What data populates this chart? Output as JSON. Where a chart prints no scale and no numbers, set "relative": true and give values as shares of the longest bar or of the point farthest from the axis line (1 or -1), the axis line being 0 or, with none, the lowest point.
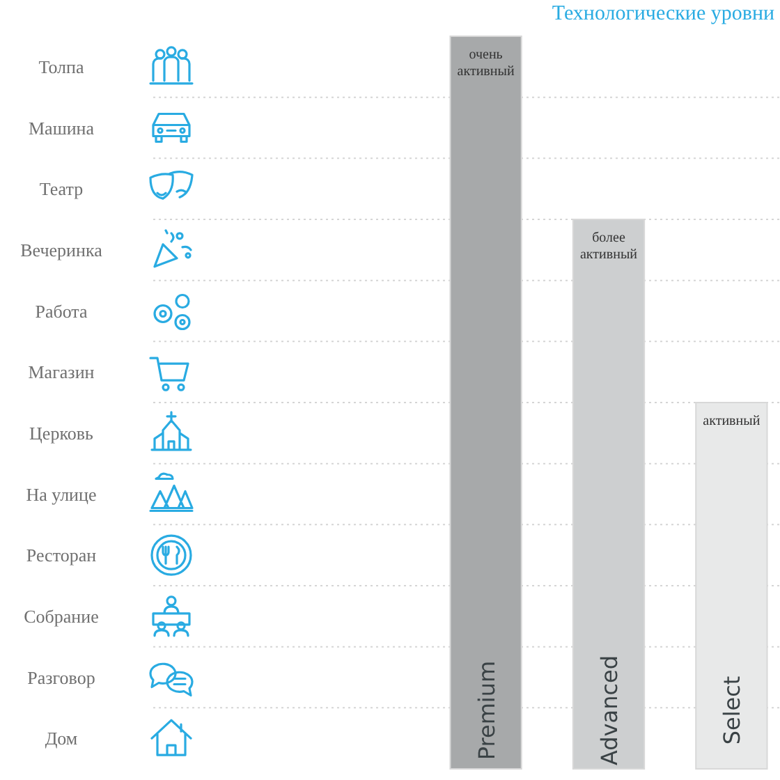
{
  "chart_data": {
    "type": "bar",
    "title": "Технологические уровни",
    "categories": [
      "Premium",
      "Advanced",
      "Select"
    ],
    "values": [
      1,
      0.75,
      0.5
    ],
    "colors": [
      "#a7a9aa",
      "#cdcfd0",
      "#e8e9e9"
    ],
    "relative": true,
    "grid": true,
    "annotations": [
      "Толпа",
      "Машина",
      "Театр",
      "Вечеринка",
      "Работа",
      "Магазин",
      "Церковь",
      "На улице",
      "Ресторан",
      "Собрание",
      "Разговор",
      "Дом",
      "очень активный",
      "более активный",
      "активный"
    ]
  }
}
